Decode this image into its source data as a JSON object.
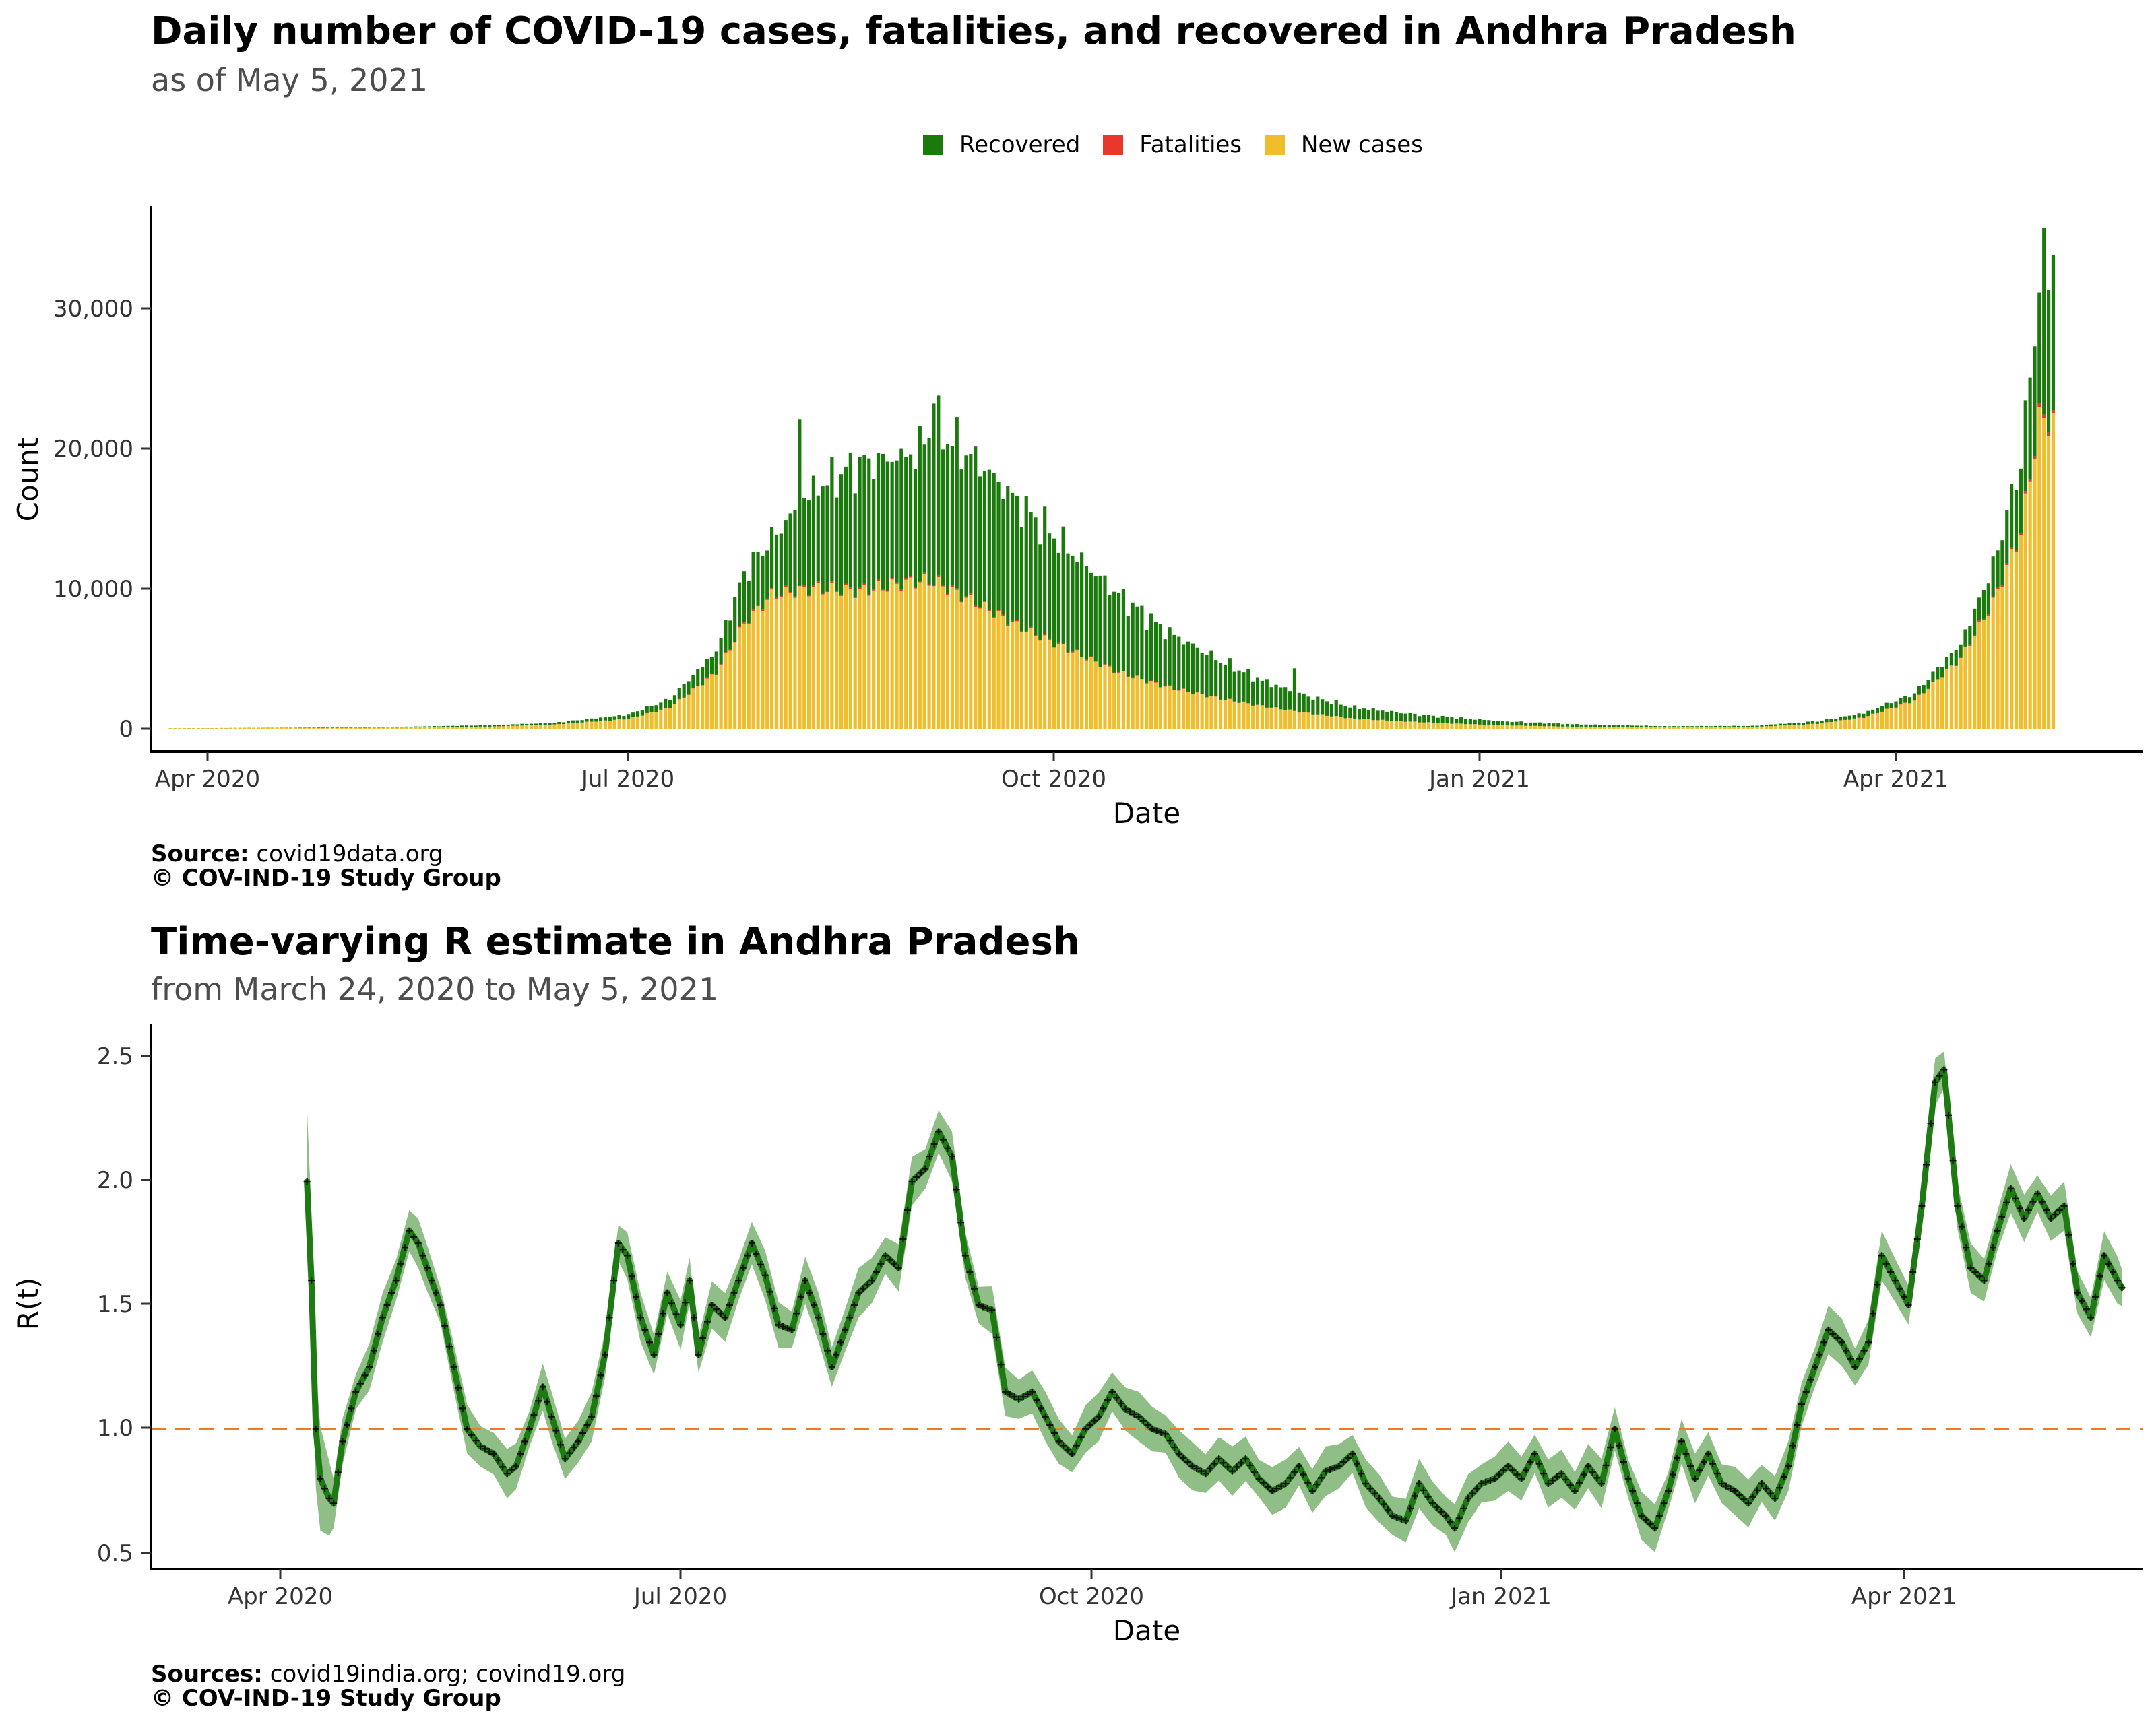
{
  "colors": {
    "recovered": "#1a7a0c",
    "fatalities": "#e8382b",
    "new_cases": "#f0be2c",
    "r_line": "#1e7a12",
    "r_band": "#7db372",
    "threshold": "#f47a20"
  },
  "top": {
    "title": "Daily number of COVID-19 cases, fatalities, and recovered in Andhra Pradesh",
    "subtitle": "as of May  5, 2021",
    "legend": [
      "Recovered",
      "Fatalities",
      "New cases"
    ],
    "caption_source_label": "Source:",
    "caption_source": "covid19data.org",
    "caption_copyright": "© COV-IND-19 Study Group"
  },
  "bottom": {
    "title": "Time-varying R estimate in Andhra Pradesh",
    "subtitle": "from March 24, 2020 to May  5, 2021",
    "caption_source_label": "Sources:",
    "caption_source": "covid19india.org; covind19.org",
    "caption_copyright": "© COV-IND-19 Study Group"
  },
  "chart_data": [
    {
      "type": "bar",
      "stacked": true,
      "xlabel": "Date",
      "ylabel": "Count",
      "x_ticks": [
        "Apr 2020",
        "Jul 2020",
        "Oct 2020",
        "Jan 2021",
        "Apr 2021"
      ],
      "y_ticks": [
        "0",
        "10,000",
        "20,000",
        "30,000"
      ],
      "ylim": [
        0,
        37000
      ],
      "legend": "top",
      "series": [
        {
          "name": "Recovered",
          "color_key": "recovered"
        },
        {
          "name": "Fatalities",
          "color_key": "fatalities"
        },
        {
          "name": "New cases",
          "color_key": "new_cases"
        }
      ],
      "points_by_date": [
        {
          "date": "2020-04-01",
          "cases": 40,
          "recovered": 5
        },
        {
          "date": "2020-04-20",
          "cases": 60,
          "recovered": 20
        },
        {
          "date": "2020-05-15",
          "cases": 90,
          "recovered": 60
        },
        {
          "date": "2020-06-01",
          "cases": 150,
          "recovered": 100
        },
        {
          "date": "2020-06-15",
          "cases": 300,
          "recovered": 120
        },
        {
          "date": "2020-07-01",
          "cases": 700,
          "recovered": 300
        },
        {
          "date": "2020-07-10",
          "cases": 1500,
          "recovered": 600
        },
        {
          "date": "2020-07-20",
          "cases": 4000,
          "recovered": 1500
        },
        {
          "date": "2020-07-26",
          "cases": 7500,
          "recovered": 3500
        },
        {
          "date": "2020-08-01",
          "cases": 9500,
          "recovered": 4000
        },
        {
          "date": "2020-08-10",
          "cases": 10000,
          "recovered": 7000
        },
        {
          "date": "2020-08-20",
          "cases": 9800,
          "recovered": 9000
        },
        {
          "date": "2020-09-01",
          "cases": 10500,
          "recovered": 9000
        },
        {
          "date": "2020-09-05",
          "cases": 10500,
          "recovered": 11000
        },
        {
          "date": "2020-09-15",
          "cases": 8800,
          "recovered": 10000
        },
        {
          "date": "2020-09-25",
          "cases": 7000,
          "recovered": 8500
        },
        {
          "date": "2020-10-05",
          "cases": 5500,
          "recovered": 7000
        },
        {
          "date": "2020-10-15",
          "cases": 4000,
          "recovered": 5500
        },
        {
          "date": "2020-10-25",
          "cases": 3000,
          "recovered": 4000
        },
        {
          "date": "2020-11-05",
          "cases": 2200,
          "recovered": 2800
        },
        {
          "date": "2020-11-15",
          "cases": 1600,
          "recovered": 1800
        },
        {
          "date": "2020-11-25",
          "cases": 1100,
          "recovered": 1200
        },
        {
          "date": "2020-12-05",
          "cases": 700,
          "recovered": 800
        },
        {
          "date": "2020-12-20",
          "cases": 450,
          "recovered": 500
        },
        {
          "date": "2021-01-05",
          "cases": 250,
          "recovered": 300
        },
        {
          "date": "2021-01-20",
          "cases": 150,
          "recovered": 180
        },
        {
          "date": "2021-02-10",
          "cases": 90,
          "recovered": 90
        },
        {
          "date": "2021-03-01",
          "cases": 120,
          "recovered": 80
        },
        {
          "date": "2021-03-15",
          "cases": 350,
          "recovered": 180
        },
        {
          "date": "2021-03-25",
          "cases": 800,
          "recovered": 300
        },
        {
          "date": "2021-04-05",
          "cases": 2000,
          "recovered": 500
        },
        {
          "date": "2021-04-15",
          "cases": 5000,
          "recovered": 1000
        },
        {
          "date": "2021-04-22",
          "cases": 9000,
          "recovered": 2500
        },
        {
          "date": "2021-04-28",
          "cases": 14000,
          "recovered": 5000
        },
        {
          "date": "2021-05-02",
          "cases": 22000,
          "recovered": 9000
        },
        {
          "date": "2021-05-05",
          "cases": 22000,
          "recovered": 11000
        }
      ],
      "notable_values": [
        {
          "date": "2020-08-07",
          "total": 22000
        },
        {
          "date": "2020-09-05",
          "total": 23100
        },
        {
          "date": "2020-11-22",
          "total": 4300
        },
        {
          "date": "2021-05-03",
          "total": 35500
        }
      ]
    },
    {
      "type": "line",
      "xlabel": "Date",
      "ylabel": "R(t)",
      "x_ticks": [
        "Apr 2020",
        "Jul 2020",
        "Oct 2020",
        "Jan 2021",
        "Apr 2021"
      ],
      "y_ticks": [
        "0.5",
        "1.0",
        "1.5",
        "2.0",
        "2.5"
      ],
      "ylim": [
        0.45,
        2.65
      ],
      "threshold": 1.0,
      "points": [
        [
          "2020-04-07",
          2.0
        ],
        [
          "2020-04-08",
          1.6
        ],
        [
          "2020-04-09",
          1.0
        ],
        [
          "2020-04-10",
          0.8
        ],
        [
          "2020-04-12",
          0.72
        ],
        [
          "2020-04-13",
          0.7
        ],
        [
          "2020-04-15",
          0.95
        ],
        [
          "2020-04-18",
          1.15
        ],
        [
          "2020-04-21",
          1.25
        ],
        [
          "2020-04-24",
          1.45
        ],
        [
          "2020-04-27",
          1.6
        ],
        [
          "2020-04-30",
          1.8
        ],
        [
          "2020-05-02",
          1.75
        ],
        [
          "2020-05-04",
          1.65
        ],
        [
          "2020-05-07",
          1.5
        ],
        [
          "2020-05-10",
          1.25
        ],
        [
          "2020-05-13",
          1.0
        ],
        [
          "2020-05-16",
          0.93
        ],
        [
          "2020-05-19",
          0.9
        ],
        [
          "2020-05-22",
          0.82
        ],
        [
          "2020-05-24",
          0.85
        ],
        [
          "2020-05-27",
          1.0
        ],
        [
          "2020-05-30",
          1.17
        ],
        [
          "2020-06-01",
          1.05
        ],
        [
          "2020-06-04",
          0.88
        ],
        [
          "2020-06-07",
          0.95
        ],
        [
          "2020-06-10",
          1.05
        ],
        [
          "2020-06-13",
          1.3
        ],
        [
          "2020-06-16",
          1.75
        ],
        [
          "2020-06-18",
          1.7
        ],
        [
          "2020-06-21",
          1.45
        ],
        [
          "2020-06-24",
          1.3
        ],
        [
          "2020-06-27",
          1.55
        ],
        [
          "2020-06-30",
          1.42
        ],
        [
          "2020-07-02",
          1.6
        ],
        [
          "2020-07-04",
          1.3
        ],
        [
          "2020-07-07",
          1.5
        ],
        [
          "2020-07-10",
          1.45
        ],
        [
          "2020-07-13",
          1.6
        ],
        [
          "2020-07-16",
          1.75
        ],
        [
          "2020-07-19",
          1.62
        ],
        [
          "2020-07-22",
          1.42
        ],
        [
          "2020-07-25",
          1.4
        ],
        [
          "2020-07-28",
          1.6
        ],
        [
          "2020-07-31",
          1.45
        ],
        [
          "2020-08-03",
          1.25
        ],
        [
          "2020-08-06",
          1.4
        ],
        [
          "2020-08-09",
          1.55
        ],
        [
          "2020-08-12",
          1.6
        ],
        [
          "2020-08-15",
          1.7
        ],
        [
          "2020-08-18",
          1.65
        ],
        [
          "2020-08-21",
          2.0
        ],
        [
          "2020-08-24",
          2.05
        ],
        [
          "2020-08-27",
          2.2
        ],
        [
          "2020-08-30",
          2.1
        ],
        [
          "2020-09-02",
          1.7
        ],
        [
          "2020-09-05",
          1.5
        ],
        [
          "2020-09-08",
          1.48
        ],
        [
          "2020-09-11",
          1.15
        ],
        [
          "2020-09-14",
          1.12
        ],
        [
          "2020-09-17",
          1.15
        ],
        [
          "2020-09-20",
          1.05
        ],
        [
          "2020-09-23",
          0.95
        ],
        [
          "2020-09-26",
          0.9
        ],
        [
          "2020-09-29",
          1.0
        ],
        [
          "2020-10-02",
          1.05
        ],
        [
          "2020-10-05",
          1.15
        ],
        [
          "2020-10-08",
          1.08
        ],
        [
          "2020-10-11",
          1.05
        ],
        [
          "2020-10-14",
          1.0
        ],
        [
          "2020-10-17",
          0.98
        ],
        [
          "2020-10-20",
          0.9
        ],
        [
          "2020-10-23",
          0.85
        ],
        [
          "2020-10-26",
          0.82
        ],
        [
          "2020-10-29",
          0.88
        ],
        [
          "2020-11-01",
          0.83
        ],
        [
          "2020-11-04",
          0.88
        ],
        [
          "2020-11-07",
          0.8
        ],
        [
          "2020-11-10",
          0.75
        ],
        [
          "2020-11-13",
          0.78
        ],
        [
          "2020-11-16",
          0.85
        ],
        [
          "2020-11-19",
          0.75
        ],
        [
          "2020-11-22",
          0.83
        ],
        [
          "2020-11-25",
          0.85
        ],
        [
          "2020-11-28",
          0.9
        ],
        [
          "2020-12-01",
          0.78
        ],
        [
          "2020-12-04",
          0.72
        ],
        [
          "2020-12-07",
          0.65
        ],
        [
          "2020-12-10",
          0.63
        ],
        [
          "2020-12-13",
          0.78
        ],
        [
          "2020-12-16",
          0.7
        ],
        [
          "2020-12-19",
          0.65
        ],
        [
          "2020-12-21",
          0.6
        ],
        [
          "2020-12-24",
          0.72
        ],
        [
          "2020-12-27",
          0.78
        ],
        [
          "2020-12-30",
          0.8
        ],
        [
          "2021-01-02",
          0.85
        ],
        [
          "2021-01-05",
          0.8
        ],
        [
          "2021-01-08",
          0.9
        ],
        [
          "2021-01-11",
          0.78
        ],
        [
          "2021-01-14",
          0.82
        ],
        [
          "2021-01-17",
          0.75
        ],
        [
          "2021-01-20",
          0.85
        ],
        [
          "2021-01-23",
          0.78
        ],
        [
          "2021-01-26",
          1.0
        ],
        [
          "2021-01-29",
          0.8
        ],
        [
          "2021-02-01",
          0.65
        ],
        [
          "2021-02-04",
          0.6
        ],
        [
          "2021-02-07",
          0.75
        ],
        [
          "2021-02-10",
          0.95
        ],
        [
          "2021-02-13",
          0.8
        ],
        [
          "2021-02-16",
          0.9
        ],
        [
          "2021-02-19",
          0.78
        ],
        [
          "2021-02-22",
          0.75
        ],
        [
          "2021-02-25",
          0.7
        ],
        [
          "2021-02-28",
          0.78
        ],
        [
          "2021-03-03",
          0.72
        ],
        [
          "2021-03-06",
          0.85
        ],
        [
          "2021-03-09",
          1.1
        ],
        [
          "2021-03-12",
          1.25
        ],
        [
          "2021-03-15",
          1.4
        ],
        [
          "2021-03-18",
          1.35
        ],
        [
          "2021-03-21",
          1.25
        ],
        [
          "2021-03-24",
          1.35
        ],
        [
          "2021-03-27",
          1.7
        ],
        [
          "2021-03-30",
          1.6
        ],
        [
          "2021-04-02",
          1.5
        ],
        [
          "2021-04-05",
          1.9
        ],
        [
          "2021-04-08",
          2.4
        ],
        [
          "2021-04-10",
          2.45
        ],
        [
          "2021-04-13",
          1.9
        ],
        [
          "2021-04-16",
          1.65
        ],
        [
          "2021-04-19",
          1.6
        ],
        [
          "2021-04-22",
          1.8
        ],
        [
          "2021-04-25",
          1.97
        ],
        [
          "2021-04-28",
          1.85
        ],
        [
          "2021-05-01",
          1.95
        ],
        [
          "2021-05-04",
          1.85
        ],
        [
          "2021-05-07",
          1.9
        ],
        [
          "2021-05-10",
          1.55
        ],
        [
          "2021-05-13",
          1.45
        ],
        [
          "2021-05-16",
          1.7
        ],
        [
          "2021-05-19",
          1.6
        ],
        [
          "2021-05-20",
          1.57
        ]
      ]
    }
  ]
}
